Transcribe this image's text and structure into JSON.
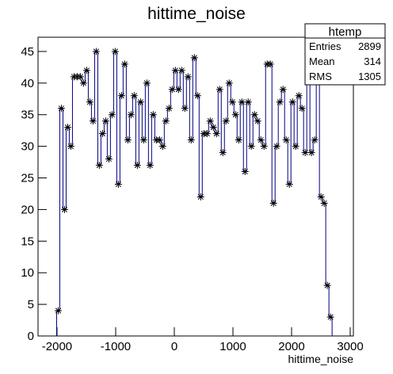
{
  "chart_data": {
    "type": "histogram",
    "title": "hittime_noise",
    "x_label": "hittime_noise",
    "color": "#000080",
    "marker_color": "#000000",
    "x": [
      -1980,
      -1926,
      -1872,
      -1818,
      -1764,
      -1710,
      -1656,
      -1602,
      -1548,
      -1494,
      -1440,
      -1386,
      -1332,
      -1278,
      -1224,
      -1170,
      -1116,
      -1062,
      -1008,
      -954,
      -900,
      -846,
      -792,
      -738,
      -684,
      -630,
      -576,
      -522,
      -468,
      -414,
      -360,
      -306,
      -252,
      -198,
      -144,
      -90,
      -36,
      18,
      72,
      126,
      180,
      234,
      288,
      342,
      396,
      450,
      504,
      558,
      612,
      666,
      720,
      774,
      828,
      882,
      936,
      990,
      1044,
      1098,
      1152,
      1206,
      1260,
      1314,
      1368,
      1422,
      1476,
      1530,
      1584,
      1638,
      1692,
      1746,
      1800,
      1854,
      1908,
      1962,
      2016,
      2070,
      2124,
      2178,
      2232,
      2286,
      2340,
      2394,
      2448,
      2502,
      2556,
      2610,
      2664
    ],
    "values": [
      4,
      36,
      20,
      33,
      30,
      41,
      41,
      41,
      40,
      42,
      37,
      34,
      45,
      27,
      32,
      34,
      28,
      35,
      45,
      24,
      38,
      43,
      31,
      35,
      38,
      27,
      37,
      31,
      40,
      27,
      35,
      31,
      31,
      30,
      34,
      36,
      39,
      42,
      39,
      42,
      36,
      41,
      31,
      44,
      38,
      22,
      32,
      32,
      34,
      33,
      32,
      39,
      29,
      34,
      40,
      37,
      35,
      31,
      37,
      26,
      37,
      30,
      35,
      34,
      31,
      30,
      43,
      43,
      21,
      30,
      37,
      39,
      31,
      24,
      37,
      30,
      38,
      36,
      29,
      43,
      29,
      31,
      44,
      22,
      21,
      8,
      3
    ],
    "xlim": [
      -2324,
      3054
    ],
    "ylim": [
      0,
      47.25
    ],
    "xticks": [
      -2000,
      -1000,
      0,
      1000,
      2000,
      3000
    ],
    "yticks": [
      0,
      5,
      10,
      15,
      20,
      25,
      30,
      35,
      40,
      45
    ],
    "stats": {
      "title": "htemp",
      "rows": [
        [
          "Entries",
          "2899"
        ],
        [
          "Mean",
          "314"
        ],
        [
          "RMS",
          "1305"
        ]
      ]
    }
  }
}
